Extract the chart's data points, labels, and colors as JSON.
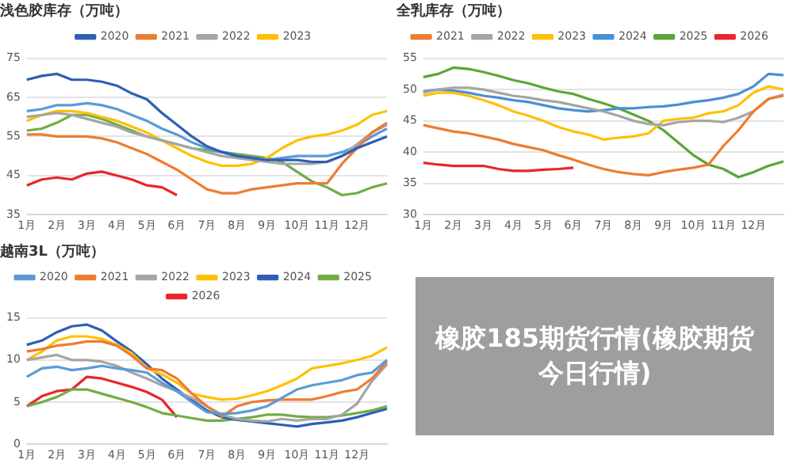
{
  "chart_data": [
    {
      "type": "line",
      "title": "浅色胶库存（万吨）",
      "categories": [
        "1月",
        null,
        "2月",
        null,
        "3月",
        null,
        "4月",
        null,
        "5月",
        null,
        "6月",
        null,
        "7月",
        null,
        "8月",
        null,
        "9月",
        null,
        "10月",
        null,
        "11月",
        null,
        "12月",
        null,
        null
      ],
      "ylim": [
        35,
        75
      ],
      "yticks": [
        35,
        45,
        55,
        65,
        75
      ],
      "grid": "y",
      "legend": "top",
      "series": [
        {
          "name": "2020",
          "color": "#2e5fb5",
          "values": [
            69.5,
            70.5,
            71,
            69.5,
            69.5,
            69,
            68,
            66,
            64.5,
            61,
            58,
            55,
            52.5,
            51,
            50,
            49.5,
            49,
            49,
            49,
            48.5,
            48.5,
            50,
            52,
            53.5,
            55
          ]
        },
        {
          "name": "2021",
          "color": "#ed7d31",
          "values": [
            55.5,
            55.5,
            55,
            55,
            55,
            54.5,
            53.5,
            52,
            50.5,
            48.5,
            46.5,
            44,
            41.5,
            40.5,
            40.5,
            41.5,
            42,
            42.5,
            43,
            43,
            43,
            48,
            52,
            56,
            58.5
          ]
        },
        {
          "name": "2022",
          "color": "#a5a5a5",
          "values": [
            60,
            60.5,
            61,
            60.5,
            59.5,
            58.5,
            57.5,
            56,
            55,
            54,
            53,
            52,
            51,
            50,
            49.5,
            49,
            48.5,
            48,
            48,
            48,
            48.5,
            50,
            53,
            56,
            58
          ]
        },
        {
          "name": "2023",
          "color": "#ffc000",
          "values": [
            59,
            60.5,
            61.5,
            61.5,
            61,
            60,
            59,
            57.5,
            56,
            54,
            52,
            50,
            48.5,
            47.5,
            47.5,
            48,
            49.5,
            52,
            54,
            55,
            55.5,
            56.5,
            58,
            60.5,
            61.5
          ]
        },
        {
          "color": "#5b9bd5",
          "values": [
            61.5,
            62,
            63,
            63,
            63.5,
            63,
            62,
            60.5,
            59,
            57,
            55.5,
            53.5,
            52,
            51,
            50,
            49.5,
            49,
            49.5,
            50,
            50,
            50,
            51,
            52.5,
            55,
            57
          ]
        },
        {
          "color": "#70ad47",
          "values": [
            56.5,
            57,
            58.5,
            60.5,
            60.5,
            59.5,
            58,
            56.5,
            55,
            54,
            53,
            52,
            51.5,
            51,
            50.5,
            50,
            49.5,
            48.5,
            46,
            43.5,
            42,
            40,
            40.5,
            42,
            43
          ]
        },
        {
          "color": "#e8262a",
          "values": [
            42.5,
            44,
            44.5,
            44,
            45.5,
            46,
            45,
            44,
            42.5,
            42,
            40,
            null,
            null,
            null,
            null,
            null,
            null,
            null,
            null,
            null,
            null,
            null,
            null,
            null,
            null
          ]
        }
      ]
    },
    {
      "type": "line",
      "title": "全乳库存（万吨）",
      "categories": [
        "1月",
        null,
        "2月",
        null,
        "3月",
        null,
        "4月",
        null,
        "5月",
        null,
        "6月",
        null,
        "7月",
        null,
        "8月",
        null,
        "9月",
        null,
        "10月",
        null,
        "11月",
        null,
        "12月",
        null,
        null
      ],
      "ylim": [
        30,
        55
      ],
      "yticks": [
        30,
        35,
        40,
        45,
        50,
        55
      ],
      "grid": "y",
      "legend": "top",
      "series": [
        {
          "name": "2021",
          "color": "#ed7d31",
          "values": [
            44.3,
            43.8,
            43.3,
            43,
            42.5,
            42,
            41.3,
            40.8,
            40.3,
            39.5,
            38.8,
            38,
            37.3,
            36.8,
            36.5,
            36.3,
            36.8,
            37.2,
            37.5,
            38,
            41,
            43.5,
            46.5,
            48.5,
            49
          ]
        },
        {
          "name": "2022",
          "color": "#a5a5a5",
          "values": [
            49.5,
            50,
            50.3,
            50.3,
            50,
            49.5,
            49,
            48.7,
            48.3,
            48,
            47.5,
            47,
            46.5,
            45.8,
            45,
            44.5,
            44.3,
            44.8,
            45,
            45,
            44.8,
            45.5,
            46.5,
            48.5,
            49.2
          ]
        },
        {
          "name": "2023",
          "color": "#ffc000",
          "values": [
            49,
            49.5,
            49.5,
            49,
            48.3,
            47.5,
            46.5,
            45.8,
            45,
            44,
            43.3,
            42.8,
            42,
            42.3,
            42.5,
            43,
            45,
            45.3,
            45.5,
            46.2,
            46.5,
            47.5,
            49.5,
            50.5,
            50
          ]
        },
        {
          "name": "2024",
          "color": "#4a8fd4",
          "values": [
            49.7,
            50,
            49.8,
            49.5,
            49,
            48.7,
            48.3,
            48,
            47.5,
            47,
            46.7,
            46.5,
            46.7,
            47,
            47,
            47.2,
            47.3,
            47.6,
            48,
            48.3,
            48.7,
            49.3,
            50.5,
            52.5,
            52.3
          ]
        },
        {
          "name": "2025",
          "color": "#5aa636",
          "values": [
            52,
            52.5,
            53.5,
            53.3,
            52.8,
            52.2,
            51.5,
            51,
            50.3,
            49.7,
            49.3,
            48.5,
            47.8,
            47,
            46,
            45,
            43.5,
            41.5,
            39.5,
            38,
            37.3,
            36,
            36.8,
            37.8,
            38.5
          ]
        },
        {
          "name": "2026",
          "color": "#e8262a",
          "values": [
            38.3,
            38,
            37.8,
            37.8,
            37.8,
            37.3,
            37,
            37,
            37.2,
            37.3,
            37.5,
            null,
            null,
            null,
            null,
            null,
            null,
            null,
            null,
            null,
            null,
            null,
            null,
            null,
            null
          ]
        }
      ]
    },
    {
      "type": "line",
      "title": "越南3L（万吨）",
      "categories": [
        "1月",
        null,
        "2月",
        null,
        "3月",
        null,
        "4月",
        null,
        "5月",
        null,
        "6月",
        null,
        "7月",
        null,
        "8月",
        null,
        "9月",
        null,
        "10月",
        null,
        "11月",
        null,
        "12月",
        null,
        null
      ],
      "ylim": [
        0,
        15
      ],
      "yticks": [
        0,
        5,
        10,
        15
      ],
      "grid": "y",
      "legend": "top",
      "series": [
        {
          "name": "2020",
          "color": "#5b9bd5",
          "values": [
            8,
            9,
            9.2,
            8.8,
            9,
            9.3,
            9,
            8.8,
            8.5,
            7.3,
            6.3,
            5,
            3.8,
            3.6,
            3.7,
            4,
            4.5,
            5.5,
            6.5,
            7,
            7.3,
            7.6,
            8.2,
            8.5,
            10
          ]
        },
        {
          "name": "2021",
          "color": "#ed7d31",
          "values": [
            11,
            11.3,
            11.7,
            11.9,
            12.2,
            12.2,
            11.7,
            10.5,
            9,
            8.8,
            7.8,
            6,
            4.5,
            3.3,
            4.5,
            5,
            5.2,
            5.3,
            5.3,
            5.3,
            5.7,
            6.2,
            6.5,
            7.8,
            9.8
          ]
        },
        {
          "name": "2022",
          "color": "#a5a5a5",
          "values": [
            10,
            10.3,
            10.6,
            10,
            10,
            9.8,
            9.3,
            8.5,
            7.8,
            7,
            6.3,
            5.5,
            4.5,
            3.5,
            3,
            2.8,
            2.7,
            3,
            2.8,
            3,
            3,
            3.5,
            4.8,
            7.5,
            9.5
          ]
        },
        {
          "name": "2023",
          "color": "#ffc000",
          "values": [
            10,
            11,
            12.3,
            12.8,
            12.8,
            12.5,
            11.8,
            10.8,
            9,
            8.3,
            7.3,
            6,
            5.6,
            5.3,
            5.4,
            5.8,
            6.3,
            7,
            7.8,
            9,
            9.3,
            9.6,
            10,
            10.5,
            11.5
          ]
        },
        {
          "name": "2024",
          "color": "#2f5fb3",
          "values": [
            11.8,
            12.3,
            13.3,
            14,
            14.2,
            13.5,
            12.2,
            11,
            9.5,
            7.8,
            6.5,
            5.2,
            4,
            3.2,
            2.9,
            2.7,
            2.5,
            2.3,
            2.1,
            2.4,
            2.6,
            2.8,
            3.2,
            3.7,
            4.2
          ]
        },
        {
          "name": "2025",
          "color": "#70ad47",
          "values": [
            4.5,
            5,
            5.6,
            6.5,
            6.5,
            6,
            5.5,
            5,
            4.4,
            3.7,
            3.4,
            3.1,
            2.8,
            2.8,
            3,
            3.2,
            3.5,
            3.5,
            3.3,
            3.2,
            3.2,
            3.4,
            3.7,
            4,
            4.5
          ]
        },
        {
          "name": "2026",
          "color": "#e8262a",
          "values": [
            4.5,
            5.7,
            6.3,
            6.5,
            8,
            7.8,
            7.3,
            6.8,
            6.2,
            5.3,
            3.2,
            null,
            null,
            null,
            null,
            null,
            null,
            null,
            null,
            null,
            null,
            null,
            null,
            null,
            null
          ]
        }
      ]
    },
    {
      "type": "other",
      "title": "橡胶185期货行情(橡胶期货今日行情)"
    }
  ]
}
